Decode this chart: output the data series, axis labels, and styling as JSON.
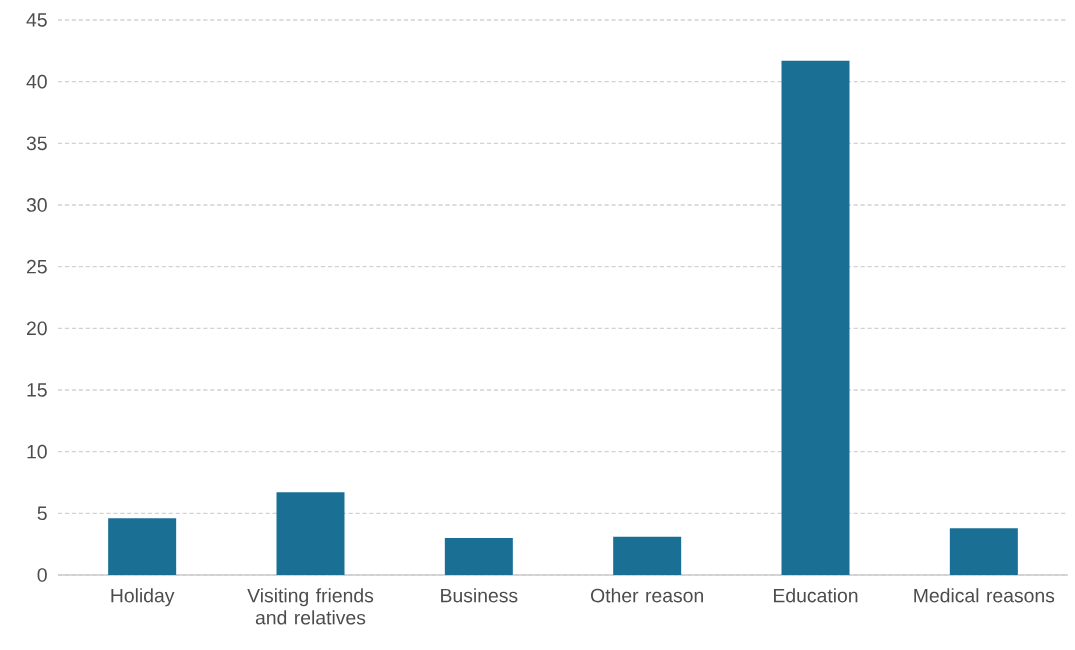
{
  "chart_data": {
    "type": "bar",
    "categories": [
      "Holiday",
      "Visiting friends and relatives",
      "Business",
      "Other reason",
      "Education",
      "Medical reasons"
    ],
    "values": [
      4.6,
      6.7,
      3.0,
      3.1,
      41.7,
      3.8
    ],
    "color": "#1a6f95",
    "ylim": [
      0,
      45
    ],
    "yticks": [
      0,
      5,
      10,
      15,
      20,
      25,
      30,
      35,
      40,
      45
    ],
    "grid": "y"
  }
}
